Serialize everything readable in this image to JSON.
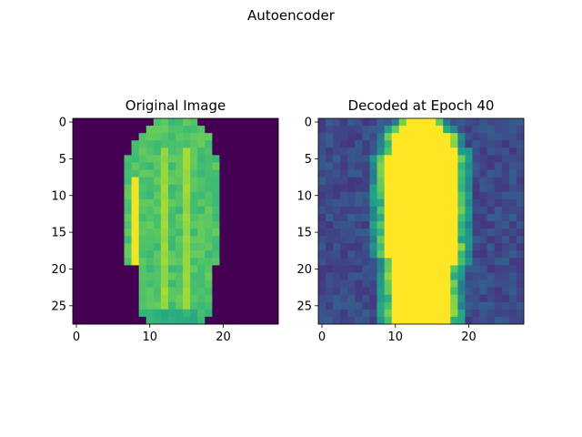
{
  "figure": {
    "suptitle": "Autoencoder"
  },
  "colormap": {
    "name": "viridis",
    "stops": [
      "#440154",
      "#482878",
      "#3e4989",
      "#31688e",
      "#26828e",
      "#1f9e89",
      "#35b779",
      "#6ece58",
      "#b5de2b",
      "#fde725"
    ]
  },
  "chart_data": [
    {
      "type": "heatmap",
      "title": "Original Image",
      "rows": 28,
      "cols": 28,
      "xlim": [
        -0.5,
        27.5
      ],
      "ylim": [
        27.5,
        -0.5
      ],
      "xticks": [
        0,
        10,
        20
      ],
      "yticks": [
        0,
        5,
        10,
        15,
        20,
        25
      ],
      "grid": false,
      "mask": {
        "row_ranges": [
          [
            11,
            16
          ],
          [
            10,
            17
          ],
          [
            9,
            18
          ],
          [
            8,
            18
          ],
          [
            8,
            18
          ],
          [
            7,
            19
          ],
          [
            7,
            19
          ],
          [
            7,
            19
          ],
          [
            7,
            19
          ],
          [
            7,
            19
          ],
          [
            7,
            19
          ],
          [
            7,
            19
          ],
          [
            7,
            19
          ],
          [
            7,
            19
          ],
          [
            7,
            19
          ],
          [
            7,
            19
          ],
          [
            7,
            19
          ],
          [
            7,
            19
          ],
          [
            7,
            19
          ],
          [
            7,
            19
          ],
          [
            9,
            18
          ],
          [
            9,
            18
          ],
          [
            9,
            18
          ],
          [
            9,
            18
          ],
          [
            9,
            18
          ],
          [
            9,
            18
          ],
          [
            9,
            18
          ],
          [
            10,
            17
          ]
        ]
      },
      "levels": {
        "background": 0.0,
        "body": 0.72,
        "center_stripes": 0.82,
        "left_edge_stripe": 0.98,
        "hem": 0.6
      }
    },
    {
      "type": "heatmap",
      "title": "Decoded at Epoch 40",
      "rows": 28,
      "cols": 28,
      "xlim": [
        -0.5,
        27.5
      ],
      "ylim": [
        27.5,
        -0.5
      ],
      "xticks": [
        0,
        10,
        20
      ],
      "yticks": [
        0,
        5,
        10,
        15,
        20,
        25
      ],
      "grid": false,
      "mask": {
        "row_ranges": [
          [
            11,
            16
          ],
          [
            10,
            17
          ],
          [
            9,
            18
          ],
          [
            9,
            18
          ],
          [
            9,
            19
          ],
          [
            8,
            19
          ],
          [
            8,
            19
          ],
          [
            8,
            19
          ],
          [
            8,
            19
          ],
          [
            8,
            19
          ],
          [
            8,
            19
          ],
          [
            8,
            19
          ],
          [
            8,
            19
          ],
          [
            8,
            19
          ],
          [
            8,
            19
          ],
          [
            8,
            19
          ],
          [
            8,
            19
          ],
          [
            8,
            19
          ],
          [
            8,
            19
          ],
          [
            9,
            19
          ],
          [
            9,
            18
          ],
          [
            9,
            18
          ],
          [
            9,
            18
          ],
          [
            9,
            18
          ],
          [
            9,
            18
          ],
          [
            9,
            18
          ],
          [
            9,
            18
          ],
          [
            9,
            18
          ]
        ]
      },
      "levels": {
        "background": 0.16,
        "body": 1.0,
        "rim": 0.55
      }
    }
  ]
}
